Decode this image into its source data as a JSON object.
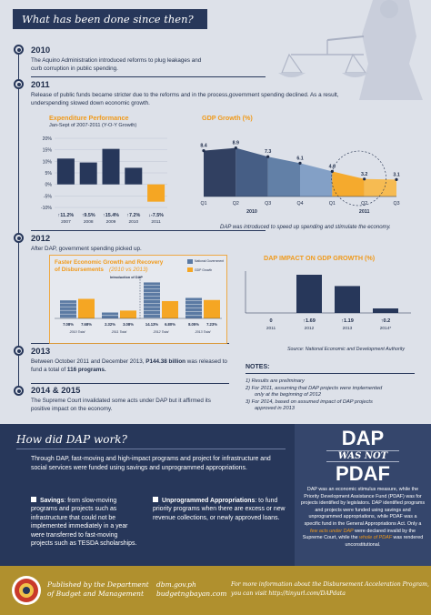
{
  "header": {
    "title": "What has been done since then?"
  },
  "timeline": [
    {
      "year": "2010",
      "text": "The Aquino Administration introduced reforms to plug leakages and curb corruption in public spending."
    },
    {
      "year": "2011",
      "text": "Release of public funds became stricter due to the reforms and in the process,government spending declined. As a result, underspending slowed down economic growth."
    },
    {
      "year": "2012",
      "text": "After DAP, government spending picked up."
    },
    {
      "year": "2013",
      "text_pre": "Between October 2011 and December 2013, ",
      "text_bold1": "P144.38 billion",
      "text_mid": " was released to fund a total of ",
      "text_bold2": "116 programs."
    },
    {
      "year": "2014 & 2015",
      "text": "The Supreme Court invalidated some acts under DAP but it affirmed its positive impact on the economy."
    }
  ],
  "charts": {
    "expenditure": {
      "title": "Expenditure Performance",
      "subtitle": "Jan-Sept of 2007-2011 (Y-O-Y Growth)",
      "colors": {
        "bar": "#27375a",
        "neg": "#f5a623"
      },
      "chart_data": {
        "type": "bar",
        "categories": [
          "2007",
          "2008",
          "2009",
          "2010",
          "2011"
        ],
        "values": [
          11.2,
          9.5,
          15.4,
          7.2,
          -7.5
        ],
        "labels": [
          "11.2%",
          "9.5%",
          "15.4%",
          "7.2%",
          "-7.5%"
        ],
        "arrows": [
          "↑",
          "↑",
          "↑",
          "↑",
          "↓"
        ],
        "ytick_labels": [
          "20%",
          "15%",
          "10%",
          "5%",
          "0%",
          "-5%",
          "-10%"
        ],
        "ylim": [
          -10,
          20
        ]
      }
    },
    "gdp": {
      "title": "GDP Growth (%)",
      "caption": "DAP was introduced to speed up spending and stimulate the economy.",
      "chart_data": {
        "type": "area",
        "categories": [
          "Q1",
          "Q2",
          "Q3",
          "Q4",
          "Q1",
          "Q2",
          "Q3"
        ],
        "values": [
          8.4,
          8.9,
          7.3,
          6.1,
          4.6,
          3.2,
          3.1
        ],
        "labels": [
          "8.4",
          "8.9",
          "7.3",
          "6.1",
          "4.6",
          "3.2",
          "3.1"
        ],
        "groups": [
          "2010",
          "2011"
        ]
      }
    },
    "fast": {
      "title_line1": "Faster Economic Growth and Recovery",
      "title_line2_pre": "of Disbursements ",
      "title_line2_italic": "(2010 vs 2013)",
      "legend": [
        "National Government",
        "GDP Growth"
      ],
      "intro_label": "Introduction of DAP",
      "chart_data": {
        "type": "bar",
        "categories": [
          "2010 Total",
          "2011 Total",
          "2012 Total",
          "2013 Total"
        ],
        "series": [
          {
            "name": "National Government",
            "values": [
              7.08,
              2.32,
              14.13,
              8.05
            ]
          },
          {
            "name": "GDP Growth",
            "values": [
              7.68,
              3.08,
              6.8,
              7.23
            ]
          }
        ],
        "labels": [
          "7.08%",
          "7.68%",
          "2.32%",
          "3.08%",
          "14.13%",
          "6.80%",
          "8.05%",
          "7.23%"
        ]
      }
    },
    "impact": {
      "title": "DAP IMPACT ON GDP GROWTH (%)",
      "source": "Source: National Economic and Development Authority",
      "chart_data": {
        "type": "bar",
        "categories": [
          "2011",
          "2012",
          "2013",
          "2014"
        ],
        "values": [
          0,
          1.69,
          1.19,
          0.2
        ],
        "labels": [
          "0",
          "1.69",
          "1.19",
          "0.2"
        ],
        "arrows": [
          "",
          "↑",
          "↑",
          "↑"
        ],
        "xnotes": [
          "",
          "",
          "",
          "*"
        ]
      }
    }
  },
  "notes": {
    "title": "NOTES:",
    "items": [
      "1) Results are preliminary",
      "2) For 2011, assuming that DAP projects were implemented",
      "only at the beginning of 2012",
      "3) For 2014, based on assumed impact of DAP projects",
      "approved in 2013"
    ]
  },
  "how": {
    "title": "How did DAP work?",
    "intro": "Through DAP, fast-moving and high-impact programs and project for infrastructure and social services were funded using savings and unprogrammed appropriations.",
    "savings_title": "Savings",
    "savings_text": ": from slow-moving programs and projects such as infrastructure that could not be implemented immediately in a year were transferred to fast-moving projects such as TESDA scholarships.",
    "unprog_title": "Unprogrammed Appropriations",
    "unprog_text": ": to fund priority programs when there are excess or new revenue collections, or newly approved loans."
  },
  "dap_box": {
    "dap": "DAP",
    "was_not": "WAS NOT",
    "pdaf": "PDAF",
    "p1": "DAP was an economic stimulus measure, while the Priority Development Assistance Fund (PDAF) was for projects identified by legislators. DAP identified programs and projects were funded using savings and unprogrammed appropriations, while PDAF was a specific fund in the General Appropriations Act. Only a ",
    "p1_hl": "few acts under DAP",
    "p2": " were declared invalid by the Supreme Court, while the ",
    "p2_hl": "whole of PDAF",
    "p3": " was rendered unconstitutional."
  },
  "footer": {
    "published": "Published by the Department",
    "published2": "of Budget and Management",
    "site1": "dbm.gov.ph",
    "site2": "budgetngbayan.com",
    "more1": "For more information about the Disbursement Acceleration Program,",
    "more2": "you can visit http://tinyurl.com/DAPdata"
  }
}
